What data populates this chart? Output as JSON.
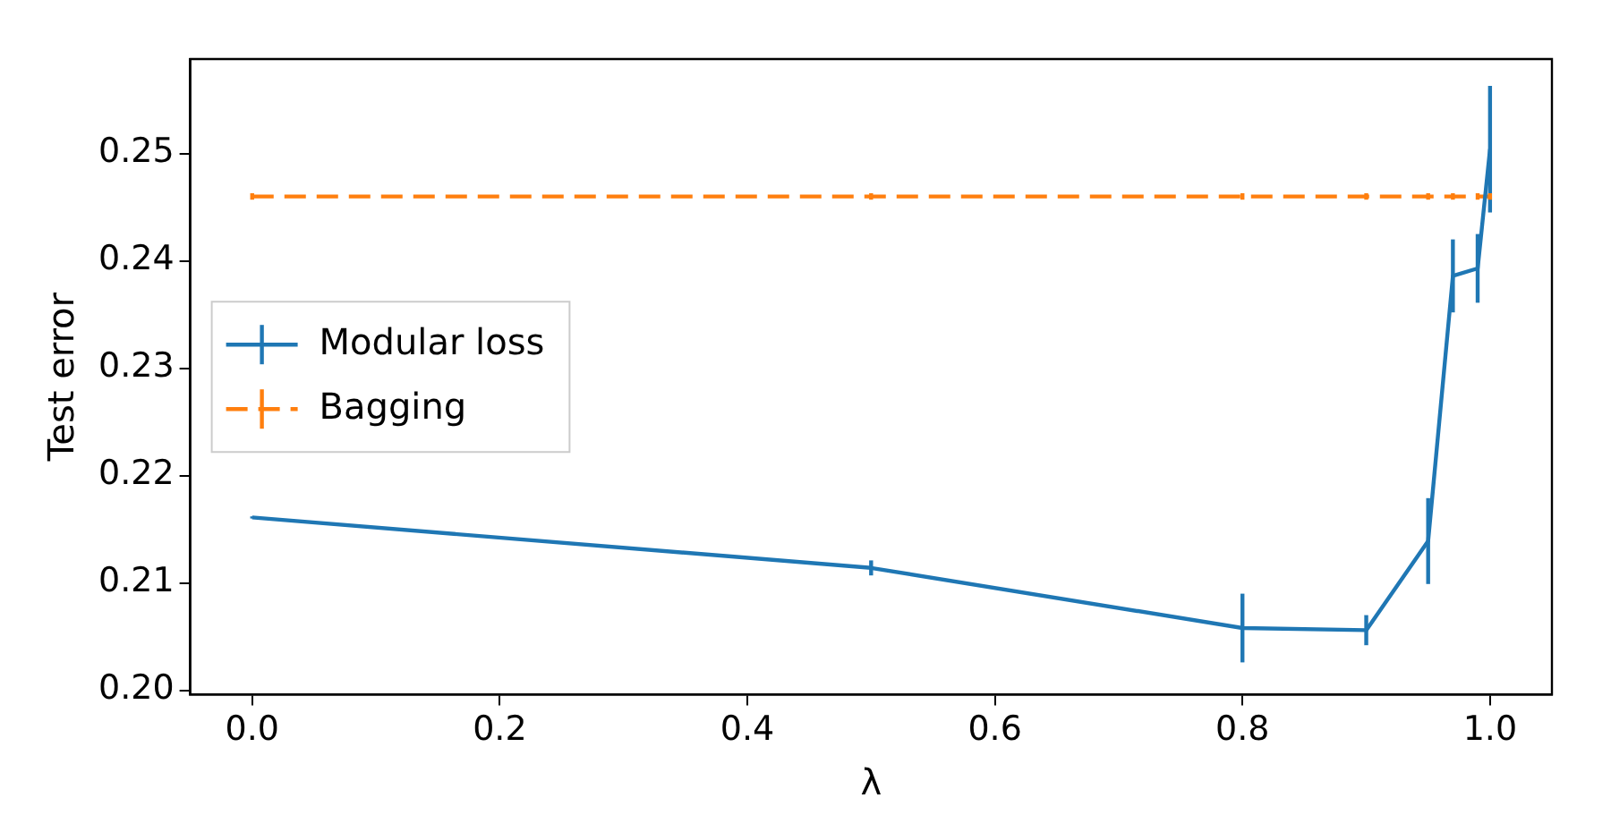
{
  "chart_data": {
    "type": "line",
    "xlabel": "λ",
    "ylabel": "Test error",
    "x": [
      0.0,
      0.5,
      0.8,
      0.9,
      0.95,
      0.97,
      0.99,
      1.0
    ],
    "series": [
      {
        "name": "Modular loss",
        "color": "#1f77b4",
        "line_style": "solid",
        "values": [
          0.2161,
          0.2114,
          0.2058,
          0.2056,
          0.2139,
          0.2386,
          0.2393,
          0.2504
        ],
        "errors": [
          0.0001,
          0.0007,
          0.0032,
          0.0014,
          0.004,
          0.0034,
          0.0032,
          0.0059
        ]
      },
      {
        "name": "Bagging",
        "color": "#ff7f0e",
        "line_style": "dashed",
        "values": [
          0.246,
          0.246,
          0.246,
          0.246,
          0.246,
          0.246,
          0.246,
          0.246
        ],
        "errors": [
          0.0003,
          0.0003,
          0.0003,
          0.0003,
          0.0003,
          0.0003,
          0.0003,
          0.0003
        ]
      }
    ],
    "xlim": [
      -0.05,
      1.05
    ],
    "ylim": [
      0.1996,
      0.2588
    ],
    "xticks": [
      {
        "value": 0,
        "label": "0.0"
      },
      {
        "value": 0.2,
        "label": "0.2"
      },
      {
        "value": 0.4,
        "label": "0.4"
      },
      {
        "value": 0.6,
        "label": "0.6"
      },
      {
        "value": 0.8,
        "label": "0.8"
      },
      {
        "value": 1,
        "label": "1.0"
      }
    ],
    "yticks": [
      {
        "value": 0.2,
        "label": "0.20"
      },
      {
        "value": 0.21,
        "label": "0.21"
      },
      {
        "value": 0.22,
        "label": "0.22"
      },
      {
        "value": 0.23,
        "label": "0.23"
      },
      {
        "value": 0.24,
        "label": "0.24"
      },
      {
        "value": 0.25,
        "label": "0.25"
      }
    ],
    "grid": false,
    "legend": "center left",
    "marker": "none"
  }
}
